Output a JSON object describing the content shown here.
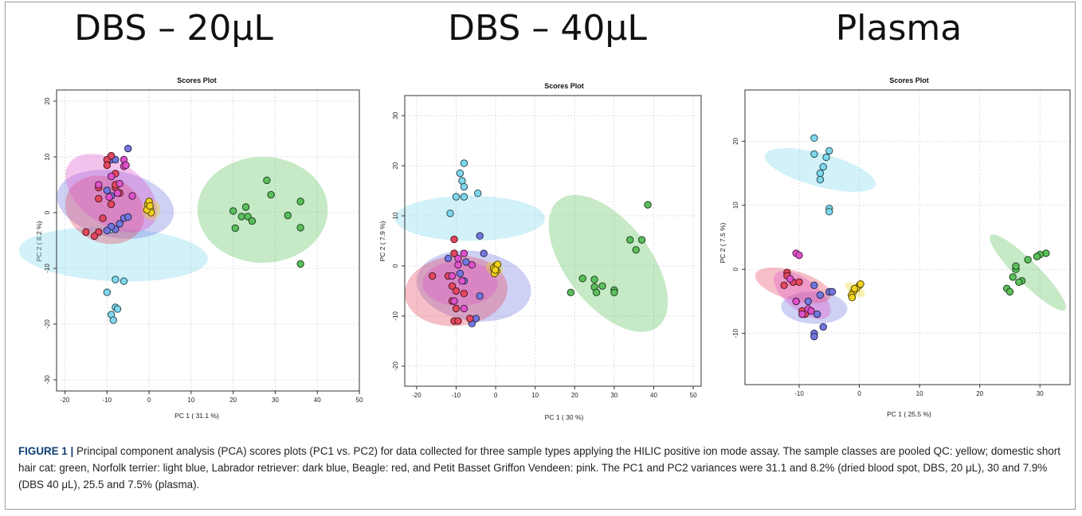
{
  "figure": {
    "caption_label": "FIGURE 1 |",
    "caption_text": " Principal component analysis (PCA) scores plots (PC1 vs. PC2) for data collected for three sample types applying the HILIC positive ion mode assay. The sample classes are pooled QC: yellow; domestic short hair cat: green, Norfolk terrier: light blue, Labrador retriever: dark blue, Beagle: red, and Petit Basset Griffon Vendeen: pink. The PC1 and PC2 variances were 31.1 and 8.2% (dried blood spot, DBS, 20 μL), 30 and 7.9% (DBS 40 μL), 25.5 and 7.5% (plasma)."
  },
  "colors": {
    "qc_yellow": "#f2d21e",
    "cat_green": "#5bbf5b",
    "norfolk_light_blue": "#7fd8ee",
    "labrador_dark_blue": "#7377e0",
    "beagle_red": "#e4475f",
    "pbgv_pink": "#e052cc"
  },
  "chart_data": [
    {
      "type": "scatter",
      "panel_title": "DBS – 20μL",
      "title": "Scores Plot",
      "xlabel": "PC 1 ( 31.1 %)",
      "ylabel": "PC 2 ( 8.2 %)",
      "xlim": [
        -22,
        50
      ],
      "ylim": [
        -32,
        22
      ],
      "xticks": [
        -20,
        -10,
        0,
        10,
        20,
        30,
        40,
        50
      ],
      "yticks": [
        -30,
        -20,
        -10,
        0,
        10,
        20
      ],
      "grid": true,
      "ellipses": [
        {
          "color": "#7fd8ee",
          "cx": -8.5,
          "cy": -7.5,
          "rx": 4.8,
          "ry": 22.5,
          "angle": 88
        },
        {
          "color": "#7377e0",
          "cx": -8,
          "cy": 1.5,
          "rx": 6,
          "ry": 14,
          "angle": 83
        },
        {
          "color": "#e4475f",
          "cx": -10.5,
          "cy": 0.5,
          "rx": 6,
          "ry": 9.5,
          "angle": 80
        },
        {
          "color": "#e052cc",
          "cx": -9,
          "cy": 3.5,
          "rx": 6,
          "ry": 11.5,
          "angle": 68
        },
        {
          "color": "#f2d21e",
          "cx": 0.5,
          "cy": 0.5,
          "rx": 1.8,
          "ry": 2.2,
          "angle": 90
        },
        {
          "color": "#5bbf5b",
          "cx": 27,
          "cy": 0.5,
          "rx": 15.5,
          "ry": 9.5,
          "angle": 0
        }
      ],
      "series": [
        {
          "color": "#f2d21e",
          "points": [
            [
              0,
              1
            ],
            [
              0.3,
              0.5
            ],
            [
              -0.3,
              1.5
            ],
            [
              0.5,
              0
            ],
            [
              0,
              2
            ],
            [
              -0.5,
              0.5
            ],
            [
              0.2,
              1.2
            ]
          ]
        },
        {
          "color": "#5bbf5b",
          "points": [
            [
              28,
              5.8
            ],
            [
              29,
              3.2
            ],
            [
              36,
              2
            ],
            [
              20,
              0.3
            ],
            [
              23,
              1
            ],
            [
              22,
              -0.7
            ],
            [
              23.5,
              -0.7
            ],
            [
              24.5,
              -1.5
            ],
            [
              33,
              -0.5
            ],
            [
              20.5,
              -2.8
            ],
            [
              36,
              -2.7
            ],
            [
              36,
              -9.2
            ]
          ]
        },
        {
          "color": "#7fd8ee",
          "points": [
            [
              -8,
              -12
            ],
            [
              -6,
              -12.3
            ],
            [
              -10,
              -14.3
            ],
            [
              -8,
              -17
            ],
            [
              -9,
              -18.3
            ],
            [
              -7.5,
              -17.3
            ],
            [
              -8.5,
              -19.3
            ],
            [
              -9,
              -3
            ]
          ]
        },
        {
          "color": "#7377e0",
          "points": [
            [
              -5,
              11.5
            ],
            [
              -9,
              9.5
            ],
            [
              -8,
              9.5
            ],
            [
              -10,
              4
            ],
            [
              -9,
              3
            ],
            [
              -6,
              -1
            ],
            [
              -5,
              -0.8
            ],
            [
              -7,
              -2
            ],
            [
              -8,
              -3
            ],
            [
              -9,
              -2.5
            ],
            [
              -10,
              -3.2
            ]
          ]
        },
        {
          "color": "#e4475f",
          "points": [
            [
              -10,
              9.5
            ],
            [
              -9,
              10.2
            ],
            [
              -10,
              8.5
            ],
            [
              -8,
              7
            ],
            [
              -8,
              4.5
            ],
            [
              -9,
              1.5
            ],
            [
              -12,
              2.5
            ],
            [
              -11,
              -1
            ],
            [
              -12,
              -3.5
            ],
            [
              -15,
              -3.5
            ],
            [
              -13,
              -4.2
            ],
            [
              -12,
              4.5
            ],
            [
              -7,
              3.5
            ],
            [
              -8,
              5
            ]
          ]
        },
        {
          "color": "#e052cc",
          "points": [
            [
              -6,
              9.5
            ],
            [
              -6,
              8.3
            ],
            [
              -5.5,
              8.5
            ],
            [
              -9,
              6.5
            ],
            [
              -12,
              5
            ],
            [
              -7,
              5.2
            ],
            [
              -9.5,
              2.8
            ],
            [
              -4,
              3
            ],
            [
              -7.5,
              3.5
            ]
          ]
        }
      ]
    },
    {
      "type": "scatter",
      "panel_title": "DBS – 40μL",
      "title": "Scores Plot",
      "xlabel": "PC 1 ( 30 %)",
      "ylabel": "PC 2 ( 7.9 %)",
      "xlim": [
        -23,
        52
      ],
      "ylim": [
        -24,
        34
      ],
      "xticks": [
        -20,
        -10,
        0,
        10,
        20,
        30,
        40,
        50
      ],
      "yticks": [
        -20,
        -10,
        0,
        10,
        20,
        30
      ],
      "grid": true,
      "ellipses": [
        {
          "color": "#7fd8ee",
          "cx": -6.5,
          "cy": 9.5,
          "rx": 4.5,
          "ry": 19,
          "angle": 90
        },
        {
          "color": "#7377e0",
          "cx": -5.5,
          "cy": -4,
          "rx": 7,
          "ry": 14.5,
          "angle": 85
        },
        {
          "color": "#e4475f",
          "cx": -10,
          "cy": -5,
          "rx": 7,
          "ry": 13,
          "angle": 93
        },
        {
          "color": "#e052cc",
          "cx": -9,
          "cy": -3.5,
          "rx": 4.5,
          "ry": 9.5,
          "angle": 90
        },
        {
          "color": "#f2d21e",
          "cx": -0.3,
          "cy": -0.5,
          "rx": 1.4,
          "ry": 2.2,
          "angle": 80
        },
        {
          "color": "#5bbf5b",
          "cx": 28.5,
          "cy": 0.5,
          "rx": 9.5,
          "ry": 18,
          "angle": 50
        }
      ],
      "series": [
        {
          "color": "#f2d21e",
          "points": [
            [
              0,
              0
            ],
            [
              -0.5,
              -0.5
            ],
            [
              0.2,
              -1
            ],
            [
              -0.3,
              -1.5
            ],
            [
              0.5,
              0.3
            ],
            [
              -0.1,
              -0.8
            ]
          ]
        },
        {
          "color": "#5bbf5b",
          "points": [
            [
              38.5,
              12.2
            ],
            [
              37,
              5.2
            ],
            [
              34,
              5.2
            ],
            [
              35.5,
              3.2
            ],
            [
              22,
              -2.5
            ],
            [
              25,
              -2.7
            ],
            [
              27,
              -4
            ],
            [
              25,
              -4.2
            ],
            [
              30,
              -4.8
            ],
            [
              30,
              -5.3
            ],
            [
              19,
              -5.3
            ],
            [
              25.5,
              -5.3
            ]
          ]
        },
        {
          "color": "#7fd8ee",
          "points": [
            [
              -8,
              20.5
            ],
            [
              -9,
              18.5
            ],
            [
              -8.5,
              17
            ],
            [
              -8,
              15.8
            ],
            [
              -4.5,
              14.5
            ],
            [
              -8,
              13.8
            ],
            [
              -10,
              13.8
            ],
            [
              -11.5,
              10.5
            ],
            [
              -10.5,
              2.5
            ]
          ]
        },
        {
          "color": "#7377e0",
          "points": [
            [
              -4,
              6
            ],
            [
              -7.5,
              0.8
            ],
            [
              -3,
              2.5
            ],
            [
              -9,
              -1.5
            ],
            [
              -8,
              -3
            ],
            [
              -12,
              1.5
            ],
            [
              -5,
              -10.5
            ],
            [
              -6,
              -11.5
            ],
            [
              -4,
              -6
            ]
          ]
        },
        {
          "color": "#e4475f",
          "points": [
            [
              -10.5,
              5.3
            ],
            [
              -10.5,
              2.5
            ],
            [
              -12,
              -2
            ],
            [
              -16,
              -2
            ],
            [
              -11,
              -4
            ],
            [
              -10,
              -5
            ],
            [
              -11,
              -7
            ],
            [
              -10,
              -8.5
            ],
            [
              -10.5,
              -11
            ],
            [
              -9.5,
              -11
            ],
            [
              -8,
              -5.5
            ],
            [
              -6.5,
              -10.5
            ]
          ]
        },
        {
          "color": "#e052cc",
          "points": [
            [
              -9.5,
              1.5
            ],
            [
              -8,
              2.5
            ],
            [
              -9.5,
              0.2
            ],
            [
              -6,
              0.2
            ],
            [
              -11,
              -2
            ],
            [
              -8.5,
              -3
            ],
            [
              -10.5,
              -7
            ],
            [
              -8,
              -8.5
            ]
          ]
        }
      ]
    },
    {
      "type": "scatter",
      "panel_title": "Plasma",
      "title": "Scores Plot",
      "xlabel": "PC 1 ( 25.5 %)",
      "ylabel": "PC 2 ( 7.5 %)",
      "xlim": [
        -19,
        35
      ],
      "ylim": [
        -18,
        28
      ],
      "xticks": [
        -10,
        0,
        10,
        20,
        30
      ],
      "yticks": [
        -10,
        0,
        10,
        20
      ],
      "grid": true,
      "ellipses": [
        {
          "color": "#7fd8ee",
          "cx": -6.5,
          "cy": 15.5,
          "rx": 2.6,
          "ry": 9.5,
          "angle": 76
        },
        {
          "color": "#7377e0",
          "cx": -7.5,
          "cy": -6,
          "rx": 2.5,
          "ry": 5.5,
          "angle": 88
        },
        {
          "color": "#e4475f",
          "cx": -11,
          "cy": -2.5,
          "rx": 2.3,
          "ry": 6.5,
          "angle": 75
        },
        {
          "color": "#e052cc",
          "cx": -9.5,
          "cy": -4,
          "rx": 2.5,
          "ry": 5.5,
          "angle": 55
        },
        {
          "color": "#f2d21e",
          "cx": -0.7,
          "cy": -3.2,
          "rx": 0.8,
          "ry": 1.8,
          "angle": 60
        },
        {
          "color": "#5bbf5b",
          "cx": 28,
          "cy": -0.5,
          "rx": 1.8,
          "ry": 8.5,
          "angle": 47
        }
      ],
      "series": [
        {
          "color": "#f2d21e",
          "points": [
            [
              0,
              -2.5
            ],
            [
              -0.5,
              -3
            ],
            [
              -1,
              -3.5
            ],
            [
              -1.3,
              -4
            ],
            [
              -0.8,
              -3
            ],
            [
              0.2,
              -2.3
            ],
            [
              -1.2,
              -4.4
            ]
          ]
        },
        {
          "color": "#5bbf5b",
          "points": [
            [
              31,
              2.5
            ],
            [
              30,
              2.3
            ],
            [
              29.5,
              2
            ],
            [
              28,
              1.5
            ],
            [
              26,
              0
            ],
            [
              26,
              0.5
            ],
            [
              27,
              -1.8
            ],
            [
              25.5,
              -1.2
            ],
            [
              26.5,
              -2
            ],
            [
              24.5,
              -3
            ],
            [
              25,
              -3.5
            ]
          ]
        },
        {
          "color": "#7fd8ee",
          "points": [
            [
              -7.5,
              20.5
            ],
            [
              -7.5,
              18
            ],
            [
              -5,
              18.5
            ],
            [
              -5.5,
              17.5
            ],
            [
              -6,
              16
            ],
            [
              -6.5,
              15
            ],
            [
              -6.5,
              14
            ],
            [
              -5,
              9.5
            ],
            [
              -5,
              9
            ]
          ]
        },
        {
          "color": "#7377e0",
          "points": [
            [
              -7.5,
              -2.5
            ],
            [
              -8.5,
              -5
            ],
            [
              -6.5,
              -4
            ],
            [
              -7,
              -7
            ],
            [
              -6,
              -9
            ],
            [
              -7.5,
              -10
            ],
            [
              -7.5,
              -10.5
            ],
            [
              -5,
              -3.5
            ],
            [
              -4.5,
              -3.5
            ]
          ]
        },
        {
          "color": "#e4475f",
          "points": [
            [
              -12,
              -0.5
            ],
            [
              -12,
              -1
            ],
            [
              -11,
              -2
            ],
            [
              -12.5,
              -2.5
            ],
            [
              -10.5,
              -5
            ],
            [
              -9.5,
              -6.5
            ],
            [
              -9,
              -7
            ],
            [
              -10,
              -2
            ]
          ]
        },
        {
          "color": "#e052cc",
          "points": [
            [
              -10.5,
              2.5
            ],
            [
              -10,
              2.2
            ],
            [
              -10.5,
              -5
            ],
            [
              -8.5,
              -6.2
            ],
            [
              -8,
              -6.5
            ],
            [
              -9.5,
              -7
            ],
            [
              -11.5,
              -1.5
            ]
          ]
        }
      ]
    }
  ]
}
